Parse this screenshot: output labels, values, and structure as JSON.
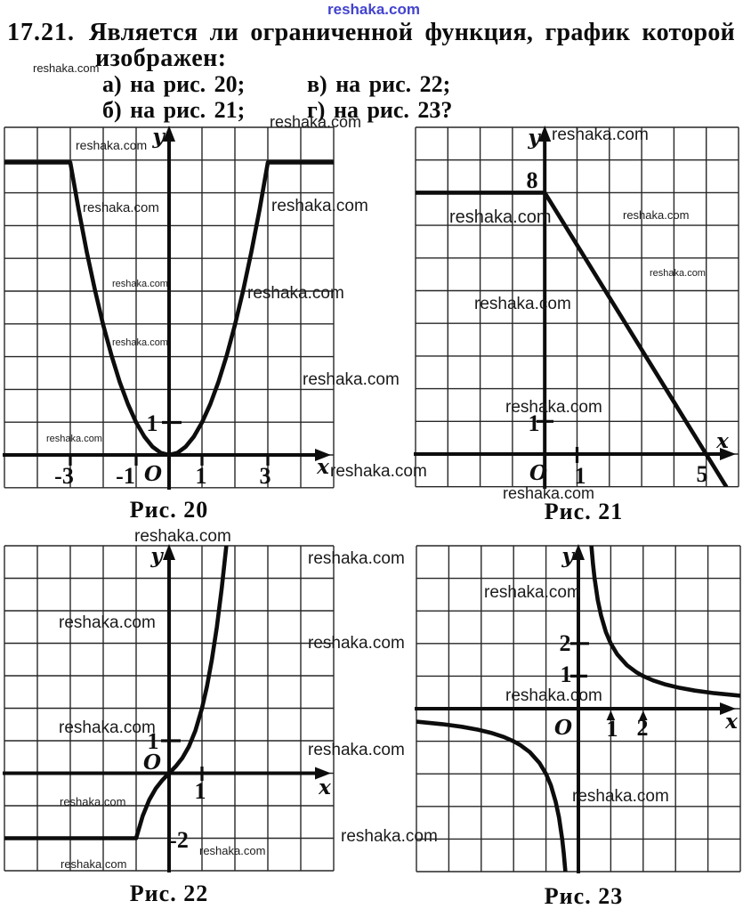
{
  "watermark": {
    "text": "reshaka.com",
    "brand_color": "#4343cf"
  },
  "header": {
    "problem_number": "17.21.",
    "statement_line1": "Является ли ограниченной функция, график которой",
    "statement_line2": "изображен:",
    "items": [
      {
        "key": "a",
        "label": "а) на рис. 20;"
      },
      {
        "key": "v",
        "label": "в) на рис. 22;"
      },
      {
        "key": "b",
        "label": "б) на рис. 21;"
      },
      {
        "key": "g",
        "label": "г) на рис. 23?"
      }
    ]
  },
  "figures": {
    "fig20": {
      "caption": "Рис. 20",
      "x_label": "x",
      "y_label": "y",
      "origin_label": "O",
      "ticks": {
        "xm3": "-3",
        "xm1": "-1",
        "x1": "1",
        "x3": "3",
        "y1": "1"
      }
    },
    "fig21": {
      "caption": "Рис. 21",
      "x_label": "x",
      "y_label": "y",
      "origin_label": "O",
      "ticks": {
        "y8": "8",
        "y1": "1",
        "x1": "1",
        "x5": "5"
      }
    },
    "fig22": {
      "caption": "Рис. 22",
      "x_label": "x",
      "y_label": "y",
      "origin_label": "O",
      "ticks": {
        "y1": "1",
        "x1": "1",
        "ym2": "-2"
      }
    },
    "fig23": {
      "caption": "Рис. 23",
      "x_label": "x",
      "y_label": "y",
      "origin_label": "O",
      "ticks": {
        "y2": "2",
        "y1": "1",
        "x1": "1",
        "x2": "2"
      }
    }
  },
  "chart_data": [
    {
      "id": "fig20",
      "type": "line",
      "title": "Рис. 20",
      "xlabel": "x",
      "ylabel": "y",
      "xlim": [
        -5,
        5
      ],
      "ylim": [
        -1,
        10
      ],
      "x_ticks": [
        -3,
        -1,
        1,
        3
      ],
      "y_ticks": [
        1
      ],
      "grid": true,
      "description": "y = x^2 for -3 <= x <= 3, constant y = 9 for |x| >= 3 (bounded function)",
      "series": [
        {
          "name": "f(x)",
          "points": [
            [
              -5,
              9
            ],
            [
              -3,
              9
            ],
            [
              -2.75,
              7.5625
            ],
            [
              -2.5,
              6.25
            ],
            [
              -2.25,
              5.0625
            ],
            [
              -2,
              4
            ],
            [
              -1.75,
              3.0625
            ],
            [
              -1.5,
              2.25
            ],
            [
              -1.25,
              1.5625
            ],
            [
              -1,
              1
            ],
            [
              -0.75,
              0.5625
            ],
            [
              -0.5,
              0.25
            ],
            [
              -0.25,
              0.0625
            ],
            [
              0,
              0
            ],
            [
              0.25,
              0.0625
            ],
            [
              0.5,
              0.25
            ],
            [
              0.75,
              0.5625
            ],
            [
              1,
              1
            ],
            [
              1.25,
              1.5625
            ],
            [
              1.5,
              2.25
            ],
            [
              1.75,
              3.0625
            ],
            [
              2,
              4
            ],
            [
              2.25,
              5.0625
            ],
            [
              2.5,
              6.25
            ],
            [
              2.75,
              7.5625
            ],
            [
              3,
              9
            ],
            [
              5,
              9
            ]
          ]
        }
      ]
    },
    {
      "id": "fig21",
      "type": "line",
      "title": "Рис. 21",
      "xlabel": "x",
      "ylabel": "y",
      "xlim": [
        -4,
        6
      ],
      "ylim": [
        -1,
        10
      ],
      "x_ticks": [
        1,
        5
      ],
      "y_ticks": [
        1,
        8
      ],
      "grid": true,
      "description": "y = 8 for x <= 0, then straight line through (0,8) and (5,0), continuing below the x-axis (unbounded below)",
      "series": [
        {
          "name": "f(x)",
          "points": [
            [
              -4,
              8
            ],
            [
              0,
              8
            ],
            [
              5.62,
              -1
            ]
          ]
        }
      ]
    },
    {
      "id": "fig22",
      "type": "line",
      "title": "Рис. 22",
      "xlabel": "x",
      "ylabel": "y",
      "xlim": [
        -5,
        5
      ],
      "ylim": [
        -3,
        7
      ],
      "x_ticks": [
        1
      ],
      "y_ticks": [
        1,
        -2
      ],
      "grid": true,
      "description": "y = -2 for x <= -1, then S-shaped cubic growth (y = x^3 + x) through the origin, unbounded above",
      "series": [
        {
          "name": "f(x)",
          "points": [
            [
              -5,
              -2
            ],
            [
              -1,
              -2
            ],
            [
              -0.8,
              -1.312
            ],
            [
              -0.6,
              -0.816
            ],
            [
              -0.4,
              -0.464
            ],
            [
              -0.2,
              -0.208
            ],
            [
              0,
              0
            ],
            [
              0.2,
              0.208
            ],
            [
              0.4,
              0.464
            ],
            [
              0.6,
              0.816
            ],
            [
              0.8,
              1.312
            ],
            [
              1,
              2
            ],
            [
              1.15,
              2.671
            ],
            [
              1.3,
              3.497
            ],
            [
              1.45,
              4.498
            ],
            [
              1.6,
              5.696
            ],
            [
              1.75,
              7.109
            ],
            [
              1.85,
              8.18
            ]
          ]
        }
      ]
    },
    {
      "id": "fig23",
      "type": "line",
      "title": "Рис. 23",
      "xlabel": "x",
      "ylabel": "y",
      "xlim": [
        -5,
        5
      ],
      "ylim": [
        -5,
        5
      ],
      "x_ticks": [
        1,
        2
      ],
      "y_ticks": [
        1,
        2
      ],
      "grid": true,
      "description": "hyperbola y = 2/x, passing through (1,2) and (2,1); unbounded near x = 0",
      "series": [
        {
          "name": "branch x>0",
          "points": [
            [
              0.36,
              5.556
            ],
            [
              0.4,
              5
            ],
            [
              0.45,
              4.444
            ],
            [
              0.5,
              4
            ],
            [
              0.6,
              3.333
            ],
            [
              0.7,
              2.857
            ],
            [
              0.85,
              2.353
            ],
            [
              1,
              2
            ],
            [
              1.2,
              1.667
            ],
            [
              1.5,
              1.333
            ],
            [
              1.8,
              1.111
            ],
            [
              2,
              1
            ],
            [
              2.3,
              0.87
            ],
            [
              2.7,
              0.741
            ],
            [
              3.1,
              0.645
            ],
            [
              3.6,
              0.556
            ],
            [
              4.2,
              0.476
            ],
            [
              5,
              0.4
            ]
          ]
        },
        {
          "name": "branch x<0",
          "points": [
            [
              -5,
              -0.4
            ],
            [
              -4.2,
              -0.476
            ],
            [
              -3.6,
              -0.556
            ],
            [
              -3.1,
              -0.645
            ],
            [
              -2.7,
              -0.741
            ],
            [
              -2.3,
              -0.87
            ],
            [
              -2,
              -1
            ],
            [
              -1.8,
              -1.111
            ],
            [
              -1.5,
              -1.333
            ],
            [
              -1.2,
              -1.667
            ],
            [
              -1,
              -2
            ],
            [
              -0.85,
              -2.353
            ],
            [
              -0.7,
              -2.857
            ],
            [
              -0.6,
              -3.333
            ],
            [
              -0.5,
              -4
            ],
            [
              -0.45,
              -4.444
            ],
            [
              -0.4,
              -5
            ],
            [
              -0.36,
              -5.56
            ]
          ]
        }
      ]
    }
  ]
}
